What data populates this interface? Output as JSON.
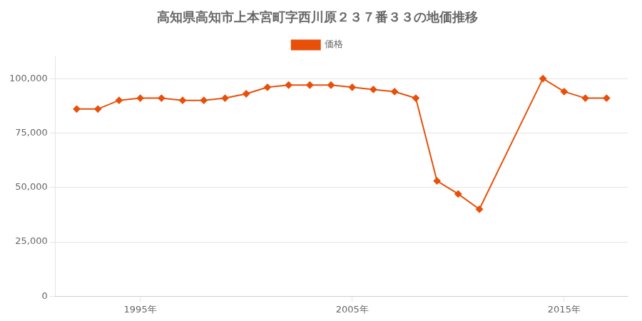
{
  "chart_data": {
    "type": "line",
    "title": "高知県高知市上本宮町字西川原２３７番３３の地価推移",
    "x": [
      1992,
      1993,
      1994,
      1995,
      1996,
      1997,
      1998,
      1999,
      2000,
      2001,
      2002,
      2003,
      2004,
      2005,
      2006,
      2007,
      2008,
      2009,
      2010,
      2011,
      2014,
      2015,
      2016,
      2017
    ],
    "series": [
      {
        "name": "価格",
        "color": "#E8500A",
        "marker": "diamond",
        "line_style": "solid",
        "values": [
          86000,
          86000,
          90000,
          91000,
          91000,
          90000,
          90000,
          91000,
          93000,
          96000,
          97000,
          97000,
          97000,
          96000,
          95000,
          94000,
          91000,
          53000,
          47000,
          40000,
          100000,
          94000,
          91000,
          91000
        ]
      }
    ],
    "xlim": [
      1991,
      2018
    ],
    "xticks": [
      {
        "value": 1995,
        "label": "1995年"
      },
      {
        "value": 2005,
        "label": "2005年"
      },
      {
        "value": 2015,
        "label": "2015年"
      }
    ],
    "ylim": [
      0,
      110000
    ],
    "yticks": [
      0,
      {
        "value": 25000,
        "label": "25,000"
      },
      {
        "value": 50000,
        "label": "50,000"
      },
      {
        "value": 75000,
        "label": "75,000"
      },
      {
        "value": 100000,
        "label": "100,000"
      }
    ],
    "grid": "y",
    "legend": "top"
  }
}
